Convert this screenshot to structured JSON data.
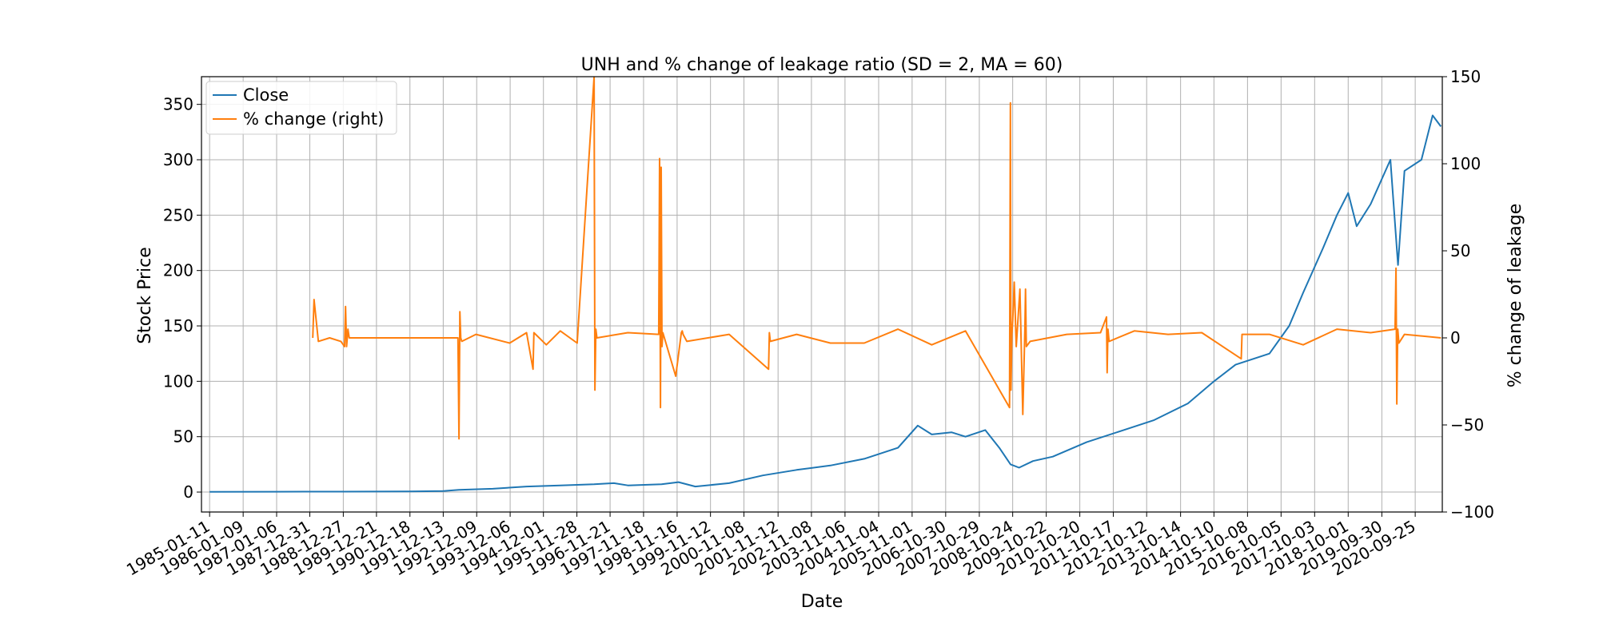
{
  "chart_data": {
    "type": "line",
    "title": "UNH and % change of leakage ratio (SD = 2, MA = 60)",
    "xlabel": "Date",
    "ylabel": "Stock Price",
    "ylabel_right": "% change of leakage",
    "x_tick_labels": [
      "1985-01-11",
      "1986-01-09",
      "1987-01-06",
      "1987-12-31",
      "1988-12-27",
      "1989-12-21",
      "1990-12-18",
      "1991-12-13",
      "1992-12-09",
      "1993-12-06",
      "1994-12-01",
      "1995-11-28",
      "1996-11-21",
      "1997-11-18",
      "1998-11-16",
      "1999-11-12",
      "2000-11-08",
      "2001-11-12",
      "2002-11-08",
      "2003-11-06",
      "2004-11-04",
      "2005-11-01",
      "2006-10-30",
      "2007-10-29",
      "2008-10-24",
      "2009-10-22",
      "2010-10-20",
      "2011-10-17",
      "2012-10-12",
      "2013-10-14",
      "2014-10-10",
      "2015-10-08",
      "2016-10-05",
      "2017-10-03",
      "2018-10-01",
      "2019-09-30",
      "2020-09-25"
    ],
    "xlim": [
      "1984-10-15",
      "2021-07-15"
    ],
    "ylim": [
      -18,
      375
    ],
    "y_ticks": [
      0,
      50,
      100,
      150,
      200,
      250,
      300,
      350
    ],
    "ylim_right": [
      -100,
      150
    ],
    "y_ticks_right": [
      -100,
      -50,
      0,
      50,
      100,
      150
    ],
    "grid": true,
    "legend_position": "top-left",
    "series": [
      {
        "name": "Close",
        "axis": "left",
        "color": "#1f77b4",
        "x": [
          "1985-01-11",
          "1987-01-06",
          "1988-12-27",
          "1990-12-18",
          "1991-12-13",
          "1992-06-01",
          "1993-06-01",
          "1994-06-01",
          "1995-06-01",
          "1996-06-01",
          "1997-01-01",
          "1997-06-01",
          "1998-06-01",
          "1998-12-01",
          "1999-06-01",
          "2000-06-01",
          "2001-06-01",
          "2002-06-01",
          "2003-06-01",
          "2004-06-01",
          "2005-06-01",
          "2006-01-01",
          "2006-06-01",
          "2007-01-01",
          "2007-06-01",
          "2008-01-01",
          "2008-06-01",
          "2008-10-01",
          "2009-01-01",
          "2009-06-01",
          "2010-01-01",
          "2011-01-01",
          "2012-01-01",
          "2013-01-01",
          "2014-01-01",
          "2014-10-10",
          "2015-06-01",
          "2016-06-01",
          "2017-01-01",
          "2017-06-01",
          "2018-01-01",
          "2018-06-01",
          "2018-10-01",
          "2019-01-01",
          "2019-06-01",
          "2020-01-01",
          "2020-03-23",
          "2020-06-01",
          "2020-12-01",
          "2021-04-01",
          "2021-06-30"
        ],
        "values": [
          0.2,
          0.3,
          0.4,
          0.5,
          1,
          2,
          3,
          5,
          6,
          7,
          8,
          6,
          7,
          9,
          5,
          8,
          15,
          20,
          24,
          30,
          40,
          60,
          52,
          54,
          50,
          56,
          40,
          25,
          22,
          28,
          32,
          45,
          55,
          65,
          80,
          100,
          115,
          125,
          150,
          180,
          220,
          250,
          270,
          240,
          260,
          300,
          205,
          290,
          300,
          340,
          330
        ]
      },
      {
        "name": "% change (right)",
        "axis": "right",
        "color": "#ff7f0e",
        "x": [
          "1988-02-01",
          "1988-02-15",
          "1988-04-01",
          "1988-08-01",
          "1988-12-01",
          "1989-01-10",
          "1989-01-20",
          "1989-02-01",
          "1989-02-15",
          "1989-03-01",
          "1991-12-01",
          "1992-05-20",
          "1992-06-01",
          "1992-06-10",
          "1992-06-20",
          "1992-07-01",
          "1992-12-01",
          "1993-12-01",
          "1994-06-01",
          "1994-08-10",
          "1994-08-20",
          "1995-01-01",
          "1995-06-01",
          "1995-12-01",
          "1996-06-01",
          "1996-06-10",
          "1996-06-20",
          "1996-07-01",
          "1997-06-01",
          "1998-05-01",
          "1998-05-10",
          "1998-05-20",
          "1998-05-28",
          "1998-06-05",
          "1998-06-15",
          "1998-07-01",
          "1998-11-01",
          "1999-01-01",
          "1999-01-10",
          "1999-01-20",
          "1999-03-01",
          "2000-06-01",
          "2001-08-01",
          "2001-08-10",
          "2001-08-20",
          "2002-06-01",
          "2003-06-01",
          "2004-06-01",
          "2005-06-01",
          "2006-06-01",
          "2007-06-01",
          "2008-09-20",
          "2008-09-29",
          "2008-10-05",
          "2008-10-15",
          "2008-10-24",
          "2008-11-10",
          "2008-12-01",
          "2009-01-10",
          "2009-02-10",
          "2009-03-05",
          "2009-03-12",
          "2009-03-20",
          "2009-05-01",
          "2010-06-01",
          "2011-06-01",
          "2011-08-05",
          "2011-08-12",
          "2011-08-20",
          "2011-09-01",
          "2012-06-01",
          "2013-06-01",
          "2014-06-01",
          "2015-08-01",
          "2015-08-10",
          "2016-06-01",
          "2017-06-01",
          "2018-06-01",
          "2019-06-01",
          "2020-02-20",
          "2020-03-01",
          "2020-03-10",
          "2020-03-20",
          "2020-04-01",
          "2020-06-01",
          "2021-06-30"
        ],
        "values": [
          0,
          22,
          -2,
          0,
          -2,
          -5,
          18,
          -5,
          5,
          0,
          0,
          0,
          -58,
          15,
          0,
          -2,
          2,
          -3,
          3,
          -18,
          3,
          -4,
          4,
          -3,
          150,
          -30,
          5,
          0,
          3,
          2,
          103,
          -40,
          98,
          -5,
          3,
          0,
          -22,
          3,
          4,
          2,
          -2,
          2,
          -18,
          3,
          -2,
          2,
          -3,
          -3,
          5,
          -4,
          4,
          -40,
          135,
          -30,
          2,
          10,
          32,
          -5,
          28,
          -44,
          5,
          28,
          -5,
          -2,
          2,
          3,
          12,
          -20,
          5,
          -2,
          4,
          2,
          3,
          -12,
          2,
          2,
          -4,
          5,
          3,
          5,
          40,
          -38,
          5,
          -3,
          2,
          0
        ]
      }
    ]
  }
}
